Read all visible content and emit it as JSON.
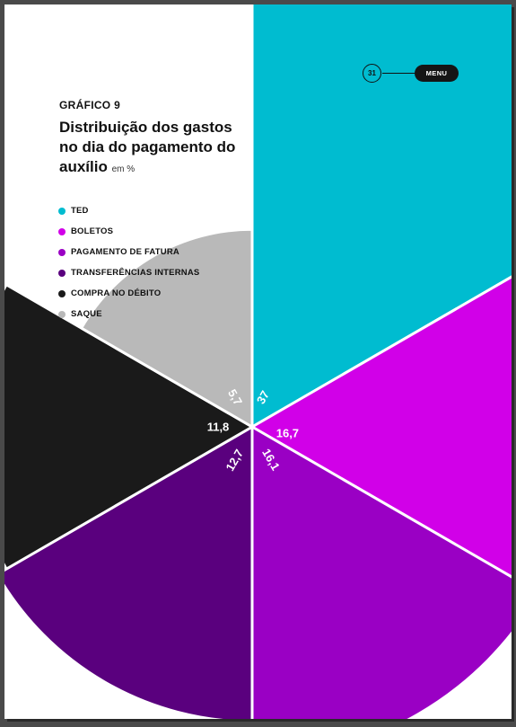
{
  "header": {
    "kicker": "GRÁFICO 9",
    "title": "Distribuição dos gastos no dia do pagamento do auxílio",
    "unit": "em %"
  },
  "nav": {
    "page_number": "31",
    "menu_label": "MENU"
  },
  "chart_data": {
    "type": "pie",
    "variant": "polar-area",
    "title": "Distribuição dos gastos no dia do pagamento do auxílio",
    "unit": "em %",
    "legend_position": "top-left",
    "slices": [
      {
        "name": "TED",
        "value": 37,
        "label": "37",
        "color": "#00bcd0"
      },
      {
        "name": "BOLETOS",
        "value": 16.7,
        "label": "16,7",
        "color": "#d100e8"
      },
      {
        "name": "PAGAMENTO DE FATURA",
        "value": 16.1,
        "label": "16,1",
        "color": "#9a00c4"
      },
      {
        "name": "TRANSFERÊNCIAS INTERNAS",
        "value": 12.7,
        "label": "12,7",
        "color": "#5a007e"
      },
      {
        "name": "COMPRA NO DÉBITO",
        "value": 11.8,
        "label": "11,8",
        "color": "#1a1a1a"
      },
      {
        "name": "SAQUE",
        "value": 5.7,
        "label": "5,7",
        "color": "#b9b9b9"
      }
    ]
  }
}
